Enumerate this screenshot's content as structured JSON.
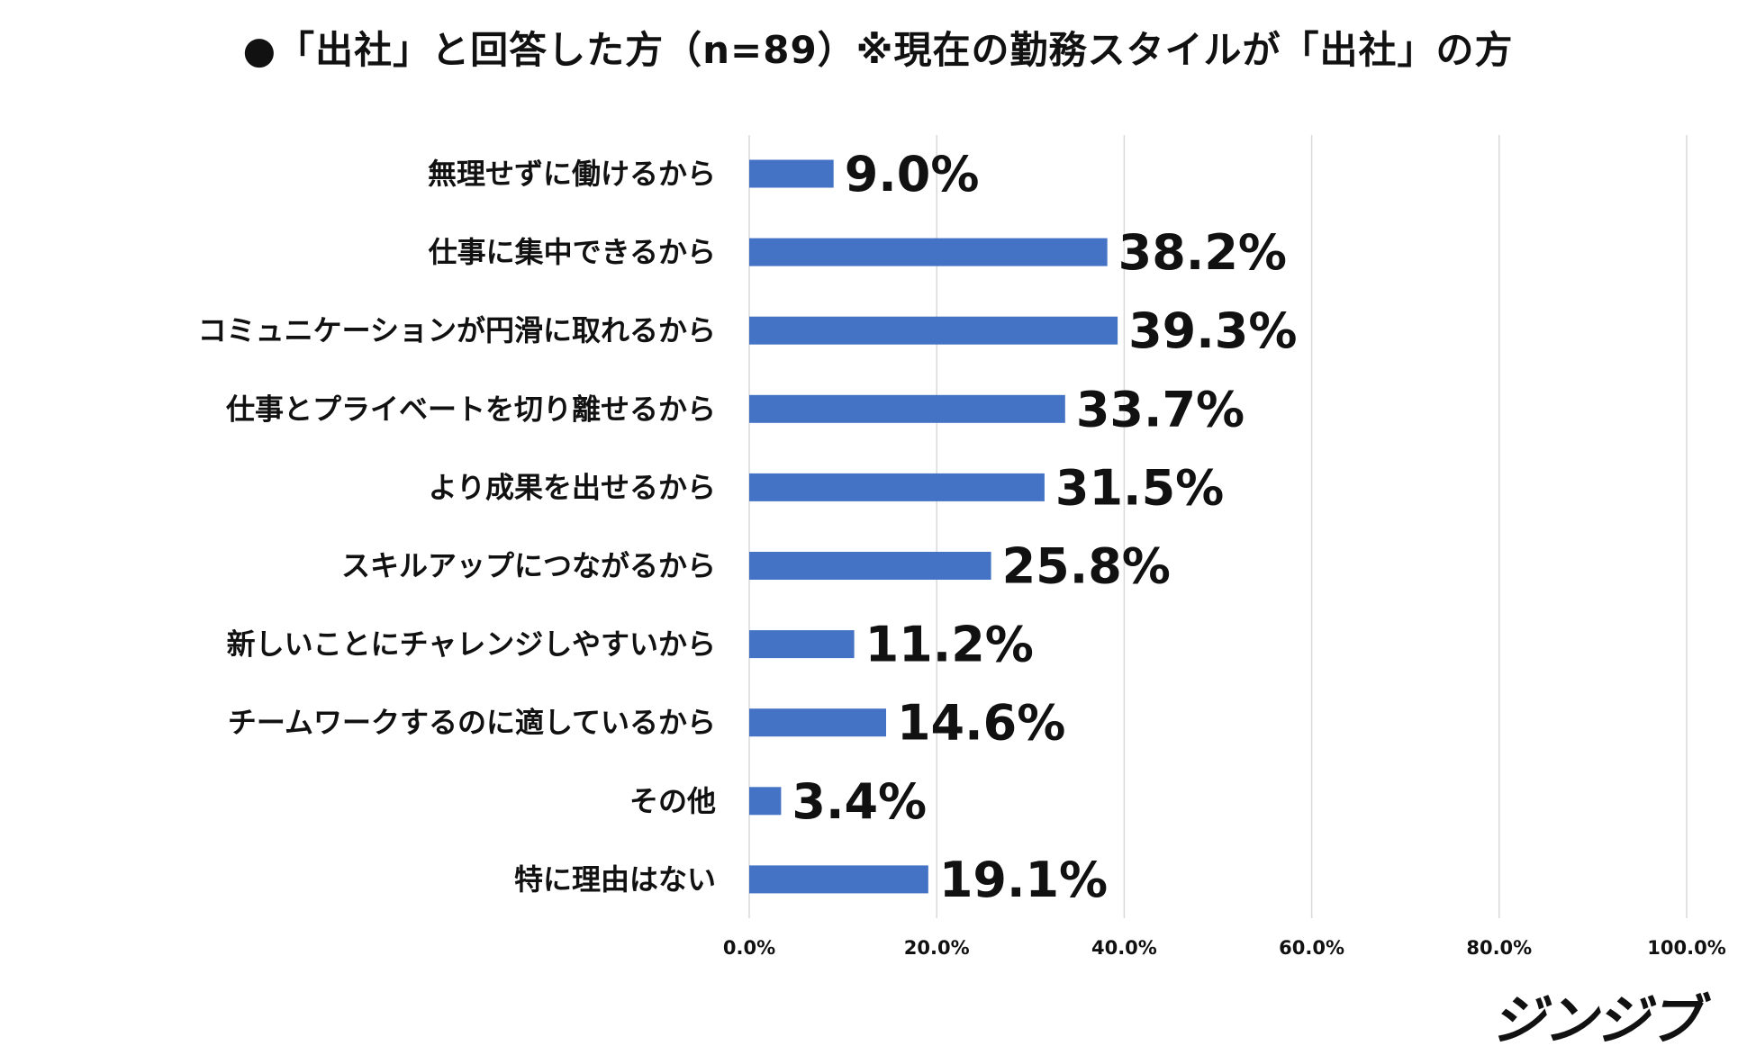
{
  "chart_data": {
    "type": "bar",
    "orientation": "horizontal",
    "title": "●「出社」と回答した方（n=89）※現在の勤務スタイルが「出社」の方",
    "categories": [
      "無理せずに働けるから",
      "仕事に集中できるから",
      "コミュニケーションが円滑に取れるから",
      "仕事とプライベートを切り離せるから",
      "より成果を出せるから",
      "スキルアップにつながるから",
      "新しいことにチャレンジしやすいから",
      "チームワークするのに適しているから",
      "その他",
      "特に理由はない"
    ],
    "values": [
      9.0,
      38.2,
      39.3,
      33.7,
      31.5,
      25.8,
      11.2,
      14.6,
      3.4,
      19.1
    ],
    "data_labels": [
      "9.0%",
      "38.2%",
      "39.3%",
      "33.7%",
      "31.5%",
      "25.8%",
      "11.2%",
      "14.6%",
      "3.4%",
      "19.1%"
    ],
    "xlim": [
      0,
      100
    ],
    "x_ticks": [
      0,
      20,
      40,
      60,
      80,
      100
    ],
    "x_tick_labels": [
      "0.0%",
      "20.0%",
      "40.0%",
      "60.0%",
      "80.0%",
      "100.0%"
    ],
    "xlabel": "",
    "ylabel": "",
    "grid": "vertical",
    "legend": "none",
    "bar_color": "#4472c4",
    "grid_color": "#d9d9d9"
  },
  "logo_text": "ジンジブ"
}
